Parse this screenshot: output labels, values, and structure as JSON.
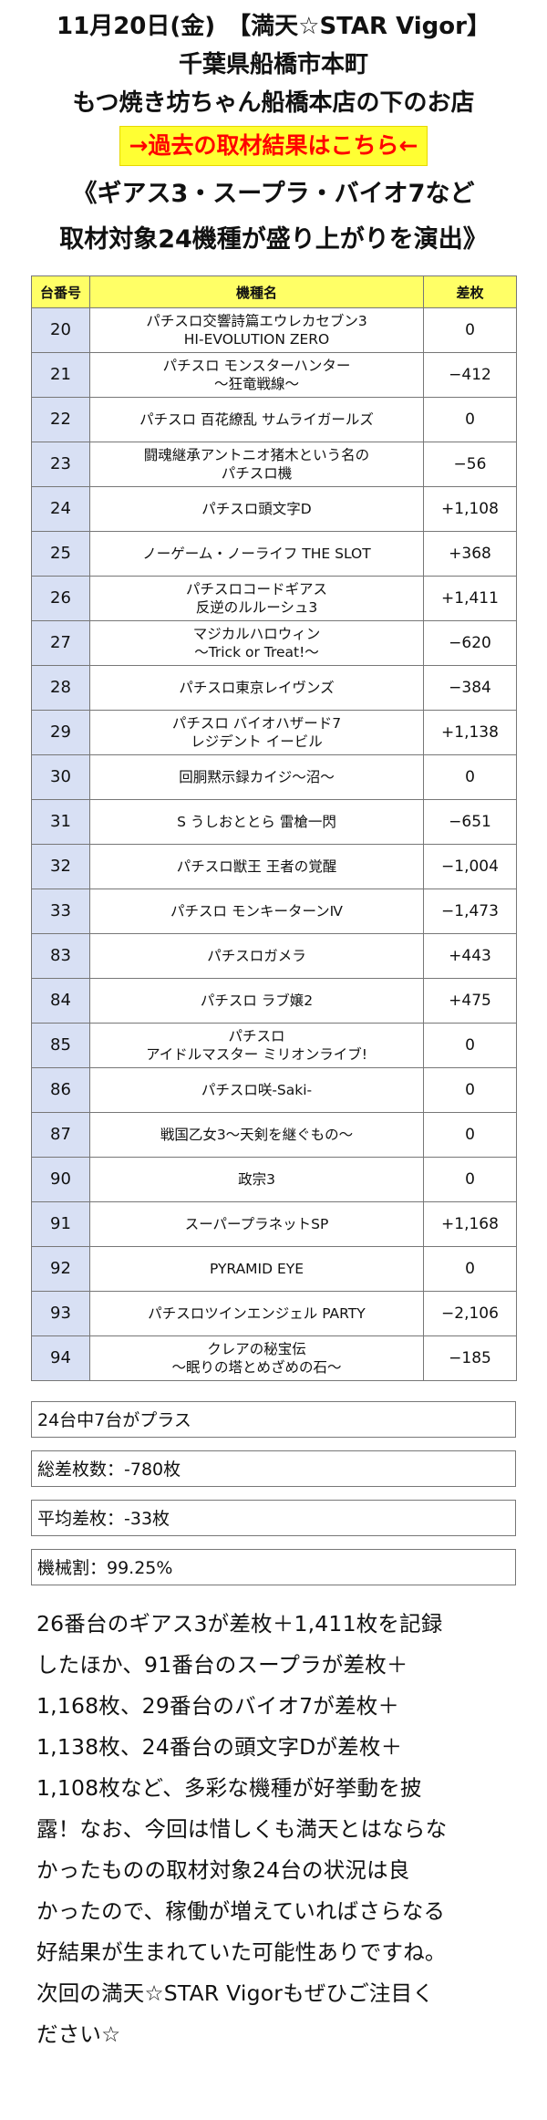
{
  "header": {
    "lines": [
      "11月20日(金)　【満天☆STAR Vigor】",
      "千葉県船橋市本町",
      "もつ焼き坊ちゃん船橋本店の下のお店"
    ],
    "past_results_link": "→過去の取材結果はこちら←",
    "headline_lines": [
      "《ギアス3・スープラ・バイオ7など",
      "取材対象24機種が盛り上がりを演出》"
    ]
  },
  "table": {
    "headers": [
      "台番号",
      "機種名",
      "差枚"
    ],
    "rows": [
      {
        "num": "20",
        "name": [
          "パチスロ交響詩篇エウレカセブン3",
          "HI-EVOLUTION ZERO"
        ],
        "diff": "0"
      },
      {
        "num": "21",
        "name": [
          "パチスロ モンスターハンター",
          "〜狂竜戦線〜"
        ],
        "diff": "−412"
      },
      {
        "num": "22",
        "name": [
          "パチスロ 百花繚乱 サムライガールズ"
        ],
        "diff": "0"
      },
      {
        "num": "23",
        "name": [
          "闘魂継承アントニオ猪木という名の",
          "パチスロ機"
        ],
        "diff": "−56"
      },
      {
        "num": "24",
        "name": [
          "パチスロ頭文字D"
        ],
        "diff": "+1,108"
      },
      {
        "num": "25",
        "name": [
          "ノーゲーム・ノーライフ THE SLOT"
        ],
        "diff": "+368"
      },
      {
        "num": "26",
        "name": [
          "パチスロコードギアス",
          "反逆のルルーシュ3"
        ],
        "diff": "+1,411"
      },
      {
        "num": "27",
        "name": [
          "マジカルハロウィン",
          "〜Trick or Treat!〜"
        ],
        "diff": "−620"
      },
      {
        "num": "28",
        "name": [
          "パチスロ東京レイヴンズ"
        ],
        "diff": "−384"
      },
      {
        "num": "29",
        "name": [
          "パチスロ バイオハザード7",
          "レジデント イービル"
        ],
        "diff": "+1,138"
      },
      {
        "num": "30",
        "name": [
          "回胴黙示録カイジ〜沼〜"
        ],
        "diff": "0"
      },
      {
        "num": "31",
        "name": [
          "S うしおととら 雷槍一閃"
        ],
        "diff": "−651"
      },
      {
        "num": "32",
        "name": [
          "パチスロ獣王 王者の覚醒"
        ],
        "diff": "−1,004"
      },
      {
        "num": "33",
        "name": [
          "パチスロ モンキーターンⅣ"
        ],
        "diff": "−1,473"
      },
      {
        "num": "83",
        "name": [
          "パチスロガメラ"
        ],
        "diff": "+443"
      },
      {
        "num": "84",
        "name": [
          "パチスロ ラブ嬢2"
        ],
        "diff": "+475"
      },
      {
        "num": "85",
        "name": [
          "パチスロ",
          "アイドルマスター ミリオンライブ!"
        ],
        "diff": "0"
      },
      {
        "num": "86",
        "name": [
          "パチスロ咲-Saki-"
        ],
        "diff": "0"
      },
      {
        "num": "87",
        "name": [
          "戦国乙女3〜天剣を継ぐもの〜"
        ],
        "diff": "0"
      },
      {
        "num": "90",
        "name": [
          "政宗3"
        ],
        "diff": "0"
      },
      {
        "num": "91",
        "name": [
          "スーパープラネットSP"
        ],
        "diff": "+1,168"
      },
      {
        "num": "92",
        "name": [
          "PYRAMID EYE"
        ],
        "diff": "0"
      },
      {
        "num": "93",
        "name": [
          "パチスロツインエンジェル PARTY"
        ],
        "diff": "−2,106"
      },
      {
        "num": "94",
        "name": [
          "クレアの秘宝伝",
          "〜眠りの塔とめざめの石〜"
        ],
        "diff": "−185"
      }
    ]
  },
  "summary": [
    "24台中7台がプラス",
    "総差枚数：-780枚",
    "平均差枚：-33枚",
    "機械割：99.25%"
  ],
  "body_lines": [
    "26番台のギアス3が差枚＋1,411枚を記録",
    "したほか、91番台のスープラが差枚＋",
    "1,168枚、29番台のバイオ7が差枚＋",
    "1,138枚、24番台の頭文字Dが差枚＋",
    "1,108枚など、多彩な機種が好挙動を披",
    "露！なお、今回は惜しくも満天とはならな",
    "かったものの取材対象24台の状況は良",
    "かったので、稼働が増えていればさらなる",
    "好結果が生まれていた可能性ありですね。",
    "次回の満天☆STAR Vigorもぜひご注目く",
    "ださい☆"
  ],
  "colors": {
    "link_bg": "#ffff33",
    "link_text": "#ff0000",
    "header_bg": "#ffff66",
    "num_bg": "#d8e0f4"
  }
}
